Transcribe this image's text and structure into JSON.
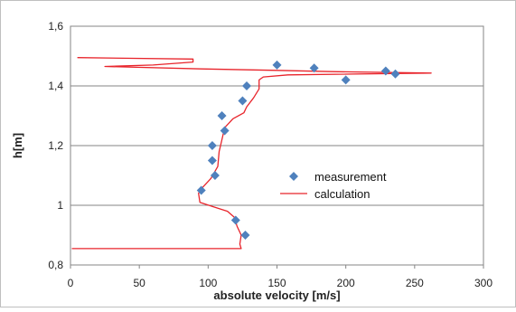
{
  "chart_data": {
    "type": "scatter",
    "title": "",
    "xlabel": "absolute velocity [m/s]",
    "ylabel": "h[m]",
    "xlim": [
      0,
      300
    ],
    "ylim": [
      0.8,
      1.6
    ],
    "x_ticks": [
      0,
      50,
      100,
      150,
      200,
      250,
      300
    ],
    "x_tick_labels": [
      "0",
      "50",
      "100",
      "150",
      "200",
      "250",
      "300"
    ],
    "y_ticks": [
      0.8,
      1.0,
      1.2,
      1.4,
      1.6
    ],
    "y_tick_labels": [
      "0,8",
      "1",
      "1,2",
      "1,4",
      "1,6"
    ],
    "grid": "horizontal",
    "legend_position": "center-right",
    "series": [
      {
        "name": "measurement",
        "kind": "scatter",
        "marker": "diamond",
        "color": "#4F81BD",
        "points": [
          [
            127,
            0.9
          ],
          [
            120,
            0.95
          ],
          [
            95,
            1.05
          ],
          [
            105,
            1.1
          ],
          [
            103,
            1.15
          ],
          [
            103,
            1.2
          ],
          [
            112,
            1.25
          ],
          [
            110,
            1.3
          ],
          [
            125,
            1.35
          ],
          [
            128,
            1.4
          ],
          [
            200,
            1.42
          ],
          [
            236,
            1.44
          ],
          [
            229,
            1.45
          ],
          [
            177,
            1.46
          ],
          [
            150,
            1.47
          ]
        ]
      },
      {
        "name": "calculation",
        "kind": "line",
        "color": "#E8242B",
        "points": [
          [
            1,
            0.855
          ],
          [
            124,
            0.855
          ],
          [
            123,
            0.87
          ],
          [
            124,
            0.9
          ],
          [
            121,
            0.93
          ],
          [
            119,
            0.96
          ],
          [
            114,
            0.98
          ],
          [
            104,
            0.995
          ],
          [
            94,
            1.01
          ],
          [
            93,
            1.04
          ],
          [
            96,
            1.06
          ],
          [
            102,
            1.09
          ],
          [
            107,
            1.13
          ],
          [
            108,
            1.18
          ],
          [
            110,
            1.22
          ],
          [
            112,
            1.26
          ],
          [
            118,
            1.29
          ],
          [
            126,
            1.31
          ],
          [
            128,
            1.33
          ],
          [
            133,
            1.36
          ],
          [
            137,
            1.39
          ],
          [
            137,
            1.42
          ],
          [
            140,
            1.43
          ],
          [
            158,
            1.437
          ],
          [
            262,
            1.443
          ],
          [
            190,
            1.448
          ],
          [
            150,
            1.452
          ],
          [
            95,
            1.457
          ],
          [
            25,
            1.465
          ],
          [
            60,
            1.47
          ],
          [
            89,
            1.48
          ],
          [
            89,
            1.49
          ],
          [
            5,
            1.495
          ]
        ]
      }
    ]
  }
}
